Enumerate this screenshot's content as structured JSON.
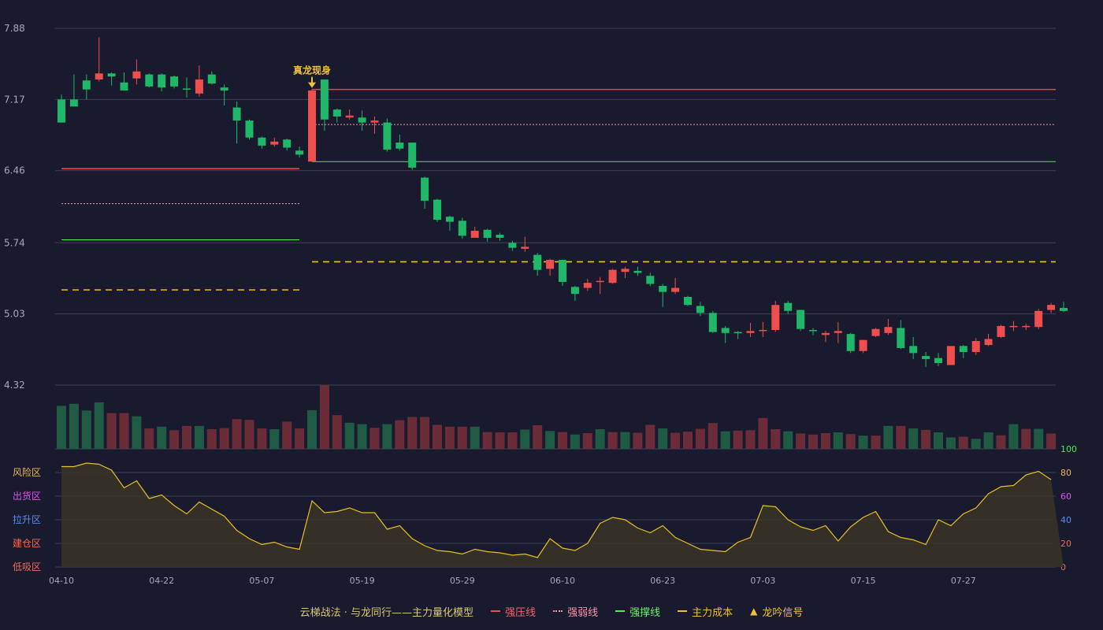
{
  "chart_data": {
    "type": "candlestick",
    "title": "",
    "price_axis": {
      "ticks": [
        7.88,
        7.17,
        6.46,
        5.74,
        5.03,
        4.32
      ],
      "min": 4.32,
      "max": 7.88
    },
    "dates": [
      "04-10",
      "04-22",
      "05-07",
      "05-19",
      "05-29",
      "06-10",
      "06-23",
      "07-03",
      "07-15",
      "07-27"
    ],
    "candles": [
      [
        7.17,
        6.94,
        7.22,
        6.94
      ],
      [
        7.17,
        7.1,
        7.42,
        7.1
      ],
      [
        7.36,
        7.27,
        7.42,
        7.17
      ],
      [
        7.37,
        7.43,
        7.79,
        7.35
      ],
      [
        7.43,
        7.4,
        7.44,
        7.31
      ],
      [
        7.34,
        7.26,
        7.44,
        7.26
      ],
      [
        7.38,
        7.45,
        7.57,
        7.32
      ],
      [
        7.42,
        7.3,
        7.43,
        7.29
      ],
      [
        7.42,
        7.29,
        7.43,
        7.25
      ],
      [
        7.4,
        7.3,
        7.41,
        7.28
      ],
      [
        7.28,
        7.27,
        7.39,
        7.19
      ],
      [
        7.23,
        7.37,
        7.51,
        7.2
      ],
      [
        7.42,
        7.33,
        7.45,
        7.32
      ],
      [
        7.29,
        7.26,
        7.32,
        7.11
      ],
      [
        7.09,
        6.96,
        7.15,
        6.73
      ],
      [
        6.96,
        6.79,
        6.97,
        6.77
      ],
      [
        6.79,
        6.71,
        6.8,
        6.68
      ],
      [
        6.72,
        6.75,
        6.79,
        6.7
      ],
      [
        6.77,
        6.69,
        6.78,
        6.66
      ],
      [
        6.66,
        6.62,
        6.7,
        6.59
      ],
      [
        6.55,
        7.26,
        7.27,
        6.55
      ],
      [
        7.37,
        6.97,
        7.37,
        6.86
      ],
      [
        7.07,
        7.0,
        7.08,
        6.94
      ],
      [
        6.99,
        7.01,
        7.07,
        6.97
      ],
      [
        6.99,
        6.94,
        7.06,
        6.86
      ],
      [
        6.94,
        6.96,
        7.0,
        6.83
      ],
      [
        6.94,
        6.67,
        6.98,
        6.65
      ],
      [
        6.74,
        6.68,
        6.82,
        6.66
      ],
      [
        6.74,
        6.49,
        6.74,
        6.47
      ],
      [
        6.39,
        6.16,
        6.4,
        6.08
      ],
      [
        6.17,
        5.97,
        6.18,
        5.95
      ],
      [
        6.0,
        5.95,
        6.01,
        5.86
      ],
      [
        5.96,
        5.81,
        5.99,
        5.78
      ],
      [
        5.79,
        5.86,
        5.9,
        5.79
      ],
      [
        5.87,
        5.79,
        5.88,
        5.75
      ],
      [
        5.82,
        5.79,
        5.84,
        5.76
      ],
      [
        5.74,
        5.69,
        5.76,
        5.66
      ],
      [
        5.68,
        5.7,
        5.8,
        5.65
      ],
      [
        5.62,
        5.47,
        5.64,
        5.41
      ],
      [
        5.48,
        5.57,
        5.58,
        5.41
      ],
      [
        5.57,
        5.35,
        5.57,
        5.31
      ],
      [
        5.3,
        5.23,
        5.31,
        5.16
      ],
      [
        5.29,
        5.34,
        5.38,
        5.26
      ],
      [
        5.36,
        5.36,
        5.4,
        5.23
      ],
      [
        5.34,
        5.47,
        5.48,
        5.33
      ],
      [
        5.45,
        5.48,
        5.5,
        5.39
      ],
      [
        5.46,
        5.44,
        5.5,
        5.41
      ],
      [
        5.41,
        5.33,
        5.44,
        5.31
      ],
      [
        5.31,
        5.25,
        5.33,
        5.1
      ],
      [
        5.25,
        5.29,
        5.39,
        5.23
      ],
      [
        5.2,
        5.12,
        5.21,
        5.11
      ],
      [
        5.11,
        5.04,
        5.15,
        5.01
      ],
      [
        5.04,
        4.85,
        5.06,
        4.84
      ],
      [
        4.89,
        4.84,
        4.91,
        4.74
      ],
      [
        4.85,
        4.84,
        4.86,
        4.78
      ],
      [
        4.84,
        4.86,
        4.94,
        4.8
      ],
      [
        4.86,
        4.87,
        4.95,
        4.8
      ],
      [
        4.87,
        5.12,
        5.16,
        4.85
      ],
      [
        5.14,
        5.06,
        5.16,
        5.03
      ],
      [
        5.07,
        4.88,
        5.07,
        4.86
      ],
      [
        4.87,
        4.86,
        4.89,
        4.82
      ],
      [
        4.82,
        4.84,
        4.86,
        4.75
      ],
      [
        4.84,
        4.86,
        4.95,
        4.74
      ],
      [
        4.83,
        4.66,
        4.84,
        4.64
      ],
      [
        4.66,
        4.77,
        4.77,
        4.64
      ],
      [
        4.81,
        4.88,
        4.89,
        4.8
      ],
      [
        4.84,
        4.9,
        4.98,
        4.82
      ],
      [
        4.89,
        4.69,
        4.97,
        4.68
      ],
      [
        4.71,
        4.64,
        4.8,
        4.58
      ],
      [
        4.61,
        4.58,
        4.65,
        4.5
      ],
      [
        4.59,
        4.54,
        4.64,
        4.51
      ],
      [
        4.52,
        4.71,
        4.71,
        4.53
      ],
      [
        4.71,
        4.65,
        4.72,
        4.59
      ],
      [
        4.65,
        4.76,
        4.79,
        4.62
      ],
      [
        4.72,
        4.78,
        4.83,
        4.71
      ],
      [
        4.8,
        4.91,
        4.92,
        4.79
      ],
      [
        4.9,
        4.91,
        4.96,
        4.86
      ],
      [
        4.91,
        4.91,
        4.93,
        4.87
      ],
      [
        4.9,
        5.06,
        5.08,
        4.88
      ],
      [
        5.07,
        5.12,
        5.14,
        5.04
      ],
      [
        5.09,
        5.06,
        5.15,
        5.05
      ]
    ],
    "volumes": [
      120,
      126,
      107,
      130,
      100,
      100,
      91,
      57,
      62,
      52,
      64,
      64,
      55,
      58,
      83,
      81,
      57,
      55,
      76,
      57,
      108,
      178,
      94,
      73,
      69,
      59,
      69,
      80,
      89,
      89,
      67,
      62,
      62,
      62,
      47,
      46,
      46,
      54,
      66,
      50,
      47,
      40,
      44,
      55,
      47,
      47,
      45,
      67,
      57,
      45,
      48,
      56,
      72,
      49,
      51,
      52,
      86,
      55,
      49,
      43,
      40,
      44,
      46,
      41,
      37,
      37,
      64,
      64,
      57,
      53,
      46,
      32,
      34,
      28,
      46,
      38,
      69,
      56,
      56,
      43
    ],
    "volume_colors": [
      "g",
      "g",
      "g",
      "g",
      "r",
      "r",
      "g",
      "r",
      "g",
      "r",
      "r",
      "g",
      "r",
      "r",
      "r",
      "r",
      "r",
      "g",
      "r",
      "r",
      "g",
      "r",
      "r",
      "g",
      "g",
      "r",
      "g",
      "r",
      "r",
      "r",
      "r",
      "r",
      "r",
      "g",
      "r",
      "r",
      "r",
      "g",
      "r",
      "g",
      "r",
      "g",
      "r",
      "g",
      "r",
      "g",
      "r",
      "r",
      "g",
      "r",
      "r",
      "r",
      "r",
      "g",
      "r",
      "r",
      "r",
      "r",
      "g",
      "r",
      "r",
      "r",
      "g",
      "r",
      "g",
      "r",
      "g",
      "r",
      "g",
      "r",
      "g",
      "g",
      "r",
      "g",
      "g",
      "r",
      "g",
      "r",
      "g",
      "r"
    ],
    "levels": {
      "left": {
        "strong_pressure": 6.48,
        "strong_weak": 6.13,
        "strong_support": 5.77,
        "main_cost": 5.27
      },
      "right": {
        "strong_pressure": 7.27,
        "strong_weak": 6.92,
        "strong_support": 6.55,
        "main_cost": 5.55
      }
    },
    "signal": {
      "index": 20,
      "label": "真龙现身"
    },
    "osc_axis": {
      "ticks": [
        0,
        20,
        40,
        60,
        80,
        100
      ]
    },
    "osc_top_tick": "100",
    "osc_values": [
      85,
      85,
      88,
      87,
      82,
      67,
      73,
      58,
      61,
      52,
      45,
      55,
      49,
      43,
      31,
      24,
      19,
      21,
      17,
      15,
      56,
      46,
      47,
      50,
      46,
      46,
      32,
      35,
      24,
      18,
      14,
      13,
      11,
      15,
      13,
      12,
      10,
      11,
      8,
      24,
      16,
      14,
      20,
      37,
      42,
      40,
      33,
      29,
      35,
      25,
      20,
      15,
      14,
      13,
      21,
      25,
      52,
      51,
      40,
      34,
      31,
      35,
      22,
      34,
      42,
      47,
      30,
      25,
      23,
      19,
      40,
      35,
      45,
      50,
      62,
      68,
      69,
      78,
      81,
      74
    ],
    "zones": [
      {
        "label": "风险区",
        "color": "#f2b35a"
      },
      {
        "label": "出货区",
        "color": "#dd55ee"
      },
      {
        "label": "拉升区",
        "color": "#5a8ef0"
      },
      {
        "label": "建仓区",
        "color": "#f06b5a"
      },
      {
        "label": "低吸区",
        "color": "#f06b5a"
      }
    ]
  },
  "legend": {
    "model": "云梯战法 · 与龙同行——主力量化模型",
    "strong_pressure": "强压线",
    "strong_weak": "强弱线",
    "strong_support": "强撑线",
    "main_cost": "主力成本",
    "signal": "龙吟信号"
  },
  "colors": {
    "up": "#ef4e4e",
    "down": "#1fb868",
    "grid": "#3d4054",
    "signal": "#f0c040"
  }
}
